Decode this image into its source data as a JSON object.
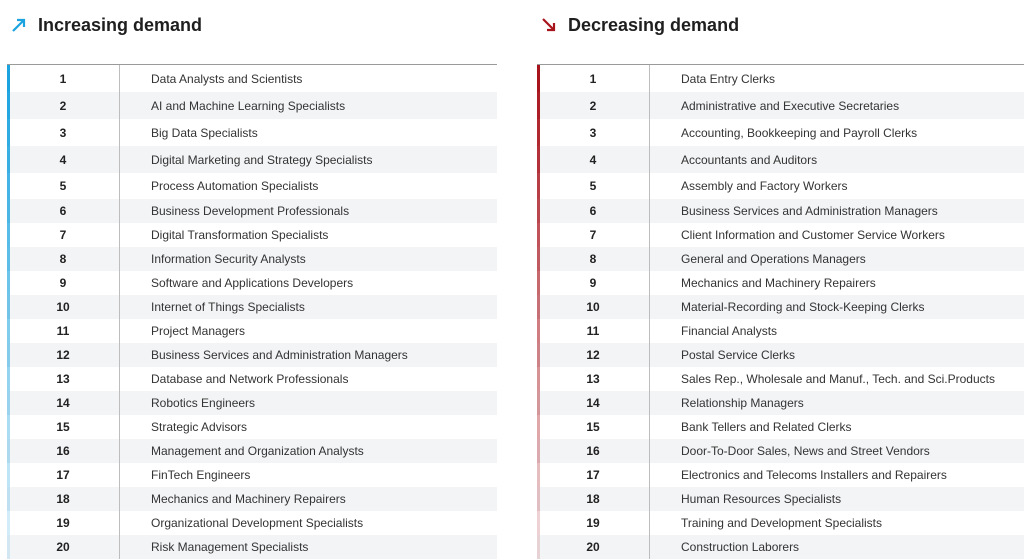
{
  "increasing": {
    "title": "Increasing demand",
    "icon": "arrow-up-right-icon",
    "accent": "#1aa3df",
    "rows": [
      {
        "rank": "1",
        "job": "Data Analysts and Scientists"
      },
      {
        "rank": "2",
        "job": "AI and Machine Learning Specialists"
      },
      {
        "rank": "3",
        "job": "Big Data Specialists"
      },
      {
        "rank": "4",
        "job": "Digital Marketing and Strategy Specialists"
      },
      {
        "rank": "5",
        "job": "Process Automation Specialists"
      },
      {
        "rank": "6",
        "job": "Business Development Professionals"
      },
      {
        "rank": "7",
        "job": "Digital Transformation Specialists"
      },
      {
        "rank": "8",
        "job": "Information Security Analysts"
      },
      {
        "rank": "9",
        "job": "Software and Applications Developers"
      },
      {
        "rank": "10",
        "job": "Internet of Things Specialists"
      },
      {
        "rank": "11",
        "job": "Project Managers"
      },
      {
        "rank": "12",
        "job": "Business Services and Administration Managers"
      },
      {
        "rank": "13",
        "job": "Database and Network Professionals"
      },
      {
        "rank": "14",
        "job": "Robotics Engineers"
      },
      {
        "rank": "15",
        "job": "Strategic Advisors"
      },
      {
        "rank": "16",
        "job": "Management and Organization Analysts"
      },
      {
        "rank": "17",
        "job": "FinTech Engineers"
      },
      {
        "rank": "18",
        "job": "Mechanics and Machinery Repairers"
      },
      {
        "rank": "19",
        "job": "Organizational Development Specialists"
      },
      {
        "rank": "20",
        "job": "Risk Management Specialists"
      }
    ]
  },
  "decreasing": {
    "title": "Decreasing demand",
    "icon": "arrow-down-right-icon",
    "accent": "#a8141c",
    "rows": [
      {
        "rank": "1",
        "job": "Data Entry Clerks"
      },
      {
        "rank": "2",
        "job": "Administrative and Executive Secretaries"
      },
      {
        "rank": "3",
        "job": "Accounting,  Bookkeeping and Payroll Clerks"
      },
      {
        "rank": "4",
        "job": "Accountants and Auditors"
      },
      {
        "rank": "5",
        "job": "Assembly and Factory Workers"
      },
      {
        "rank": "6",
        "job": "Business Services and Administration Managers"
      },
      {
        "rank": "7",
        "job": "Client Information and Customer Service Workers"
      },
      {
        "rank": "8",
        "job": "General and Operations Managers"
      },
      {
        "rank": "9",
        "job": "Mechanics and Machinery Repairers"
      },
      {
        "rank": "10",
        "job": "Material-Recording and Stock-Keeping Clerks"
      },
      {
        "rank": "11",
        "job": "Financial Analysts"
      },
      {
        "rank": "12",
        "job": "Postal Service Clerks"
      },
      {
        "rank": "13",
        "job": "Sales Rep., Wholesale and Manuf., Tech. and Sci.Products"
      },
      {
        "rank": "14",
        "job": "Relationship Managers"
      },
      {
        "rank": "15",
        "job": "Bank Tellers and Related Clerks"
      },
      {
        "rank": "16",
        "job": "Door-To-Door Sales, News and Street Vendors"
      },
      {
        "rank": "17",
        "job": "Electronics and Telecoms Installers and Repairers"
      },
      {
        "rank": "18",
        "job": "Human Resources Specialists"
      },
      {
        "rank": "19",
        "job": "Training and Development Specialists"
      },
      {
        "rank": "20",
        "job": "Construction Laborers"
      }
    ]
  }
}
